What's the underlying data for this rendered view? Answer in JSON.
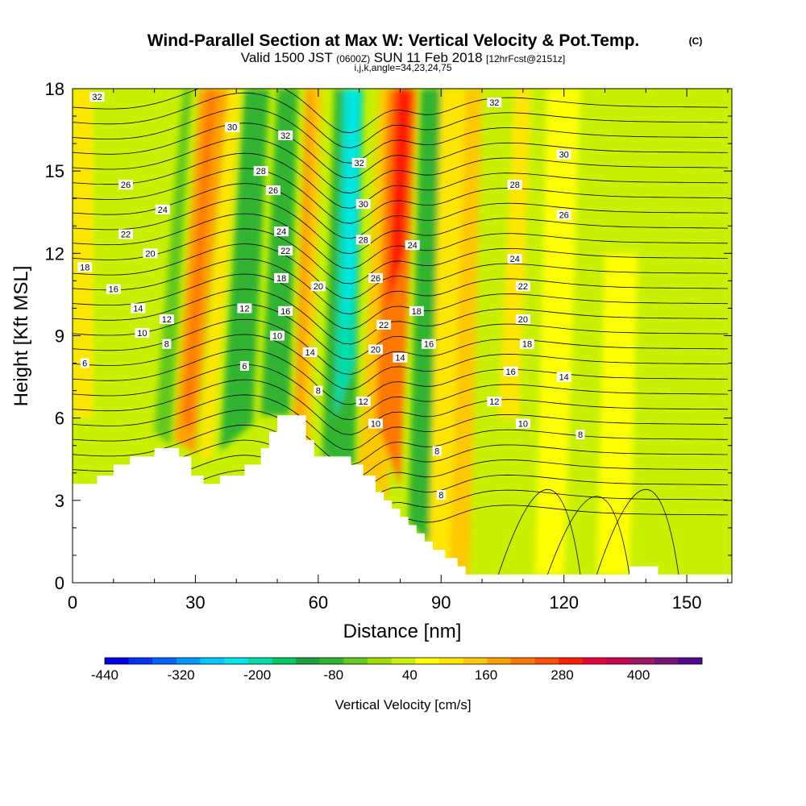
{
  "header": {
    "title": "Wind-Parallel Section at Max W: Vertical Velocity & Pot.Temp.",
    "copyright": "(C)",
    "subtitle_a": "Valid 1500 JST",
    "subtitle_b": "(0600Z)",
    "subtitle_c": "SUN 11 Feb 2018",
    "subtitle_d": "[12hrFcst@2151z]",
    "subtitle_e": "i,j,k,angle=34,23,24,75"
  },
  "chart_data": {
    "type": "heatmap",
    "xlabel": "Distance [nm]",
    "ylabel": "Height [Kft MSL]",
    "xlim": [
      0,
      161
    ],
    "ylim": [
      0,
      18
    ],
    "x_ticks": [
      0,
      30,
      60,
      90,
      120,
      150
    ],
    "x_tick_labels": [
      "0",
      "30",
      "60",
      "90",
      "120",
      "150"
    ],
    "y_ticks": [
      0,
      3,
      6,
      9,
      12,
      15,
      18
    ],
    "y_tick_labels": [
      "0",
      "3",
      "6",
      "9",
      "12",
      "15",
      "18"
    ],
    "colorbar": {
      "label": "Vertical Velocity [cm/s]",
      "tick_values": [
        -440,
        -320,
        -200,
        -80,
        40,
        160,
        280,
        400
      ],
      "tick_labels": [
        "-440",
        "-320",
        "-200",
        "-80",
        "40",
        "160",
        "280",
        "400"
      ],
      "colors": [
        "#0000e6",
        "#0033f5",
        "#0066ff",
        "#0099ff",
        "#00c8ff",
        "#00e6e6",
        "#00dcaa",
        "#00c864",
        "#1ea03c",
        "#32b432",
        "#64c81e",
        "#a0dc00",
        "#c8f000",
        "#ffff00",
        "#ffe600",
        "#ffc800",
        "#ffa000",
        "#ff7800",
        "#ff5000",
        "#ff1e00",
        "#e6003c",
        "#c80050",
        "#a01464",
        "#781478",
        "#500a8c"
      ]
    },
    "terrain_profile": [
      [
        0,
        3.6
      ],
      [
        6,
        3.9
      ],
      [
        10,
        4.3
      ],
      [
        14,
        4.6
      ],
      [
        20,
        4.9
      ],
      [
        26,
        4.6
      ],
      [
        29,
        3.9
      ],
      [
        32,
        3.6
      ],
      [
        36,
        3.9
      ],
      [
        42,
        4.3
      ],
      [
        46,
        4.9
      ],
      [
        48,
        5.5
      ],
      [
        50,
        6.1
      ],
      [
        55,
        6.1
      ],
      [
        57,
        5.2
      ],
      [
        59,
        4.6
      ],
      [
        65,
        4.6
      ],
      [
        68,
        4.3
      ],
      [
        71,
        3.9
      ],
      [
        74,
        3.3
      ],
      [
        76,
        3.0
      ],
      [
        78,
        2.7
      ],
      [
        80,
        2.4
      ],
      [
        82,
        2.1
      ],
      [
        84,
        1.8
      ],
      [
        86,
        1.5
      ],
      [
        88,
        1.2
      ],
      [
        91,
        0.9
      ],
      [
        94,
        0.6
      ],
      [
        96,
        0.3
      ],
      [
        113,
        0.3
      ],
      [
        135,
        0.3
      ],
      [
        136,
        0.6
      ],
      [
        142,
        0.6
      ],
      [
        143,
        0.3
      ],
      [
        161,
        0.3
      ]
    ],
    "theta_contour_labels": [
      {
        "x": 6,
        "y": 17.7,
        "text": "32"
      },
      {
        "x": 39,
        "y": 16.6,
        "text": "30"
      },
      {
        "x": 52,
        "y": 16.3,
        "text": "32"
      },
      {
        "x": 70,
        "y": 15.3,
        "text": "32"
      },
      {
        "x": 103,
        "y": 17.5,
        "text": "32"
      },
      {
        "x": 120,
        "y": 15.6,
        "text": "30"
      },
      {
        "x": 108,
        "y": 14.5,
        "text": "28"
      },
      {
        "x": 46,
        "y": 15.0,
        "text": "28"
      },
      {
        "x": 13,
        "y": 14.5,
        "text": "26"
      },
      {
        "x": 49,
        "y": 14.3,
        "text": "26"
      },
      {
        "x": 71,
        "y": 13.8,
        "text": "30"
      },
      {
        "x": 120,
        "y": 13.4,
        "text": "26"
      },
      {
        "x": 22,
        "y": 13.6,
        "text": "24"
      },
      {
        "x": 51,
        "y": 12.8,
        "text": "24"
      },
      {
        "x": 71,
        "y": 12.5,
        "text": "28"
      },
      {
        "x": 83,
        "y": 12.3,
        "text": "24"
      },
      {
        "x": 13,
        "y": 12.7,
        "text": "22"
      },
      {
        "x": 19,
        "y": 12.0,
        "text": "20"
      },
      {
        "x": 52,
        "y": 12.1,
        "text": "22"
      },
      {
        "x": 108,
        "y": 11.8,
        "text": "24"
      },
      {
        "x": 3,
        "y": 11.5,
        "text": "18"
      },
      {
        "x": 51,
        "y": 11.1,
        "text": "18"
      },
      {
        "x": 74,
        "y": 11.1,
        "text": "26"
      },
      {
        "x": 60,
        "y": 10.8,
        "text": "20"
      },
      {
        "x": 110,
        "y": 10.8,
        "text": "22"
      },
      {
        "x": 10,
        "y": 10.7,
        "text": "16"
      },
      {
        "x": 16,
        "y": 10.0,
        "text": "14"
      },
      {
        "x": 42,
        "y": 10.0,
        "text": "12"
      },
      {
        "x": 52,
        "y": 9.9,
        "text": "16"
      },
      {
        "x": 84,
        "y": 9.9,
        "text": "18"
      },
      {
        "x": 110,
        "y": 9.6,
        "text": "20"
      },
      {
        "x": 23,
        "y": 9.6,
        "text": "12"
      },
      {
        "x": 76,
        "y": 9.4,
        "text": "22"
      },
      {
        "x": 17,
        "y": 9.1,
        "text": "10"
      },
      {
        "x": 50,
        "y": 9.0,
        "text": "10"
      },
      {
        "x": 111,
        "y": 8.7,
        "text": "18"
      },
      {
        "x": 87,
        "y": 8.7,
        "text": "16"
      },
      {
        "x": 23,
        "y": 8.7,
        "text": "8"
      },
      {
        "x": 58,
        "y": 8.4,
        "text": "14"
      },
      {
        "x": 74,
        "y": 8.5,
        "text": "20"
      },
      {
        "x": 80,
        "y": 8.2,
        "text": "14"
      },
      {
        "x": 3,
        "y": 8.0,
        "text": "6"
      },
      {
        "x": 42,
        "y": 7.9,
        "text": "6"
      },
      {
        "x": 107,
        "y": 7.7,
        "text": "16"
      },
      {
        "x": 120,
        "y": 7.5,
        "text": "14"
      },
      {
        "x": 60,
        "y": 7.0,
        "text": "8"
      },
      {
        "x": 71,
        "y": 6.6,
        "text": "12"
      },
      {
        "x": 103,
        "y": 6.6,
        "text": "12"
      },
      {
        "x": 74,
        "y": 5.8,
        "text": "10"
      },
      {
        "x": 110,
        "y": 5.8,
        "text": "10"
      },
      {
        "x": 124,
        "y": 5.4,
        "text": "8"
      },
      {
        "x": 89,
        "y": 4.8,
        "text": "8"
      },
      {
        "x": 90,
        "y": 3.2,
        "text": "8"
      }
    ]
  }
}
